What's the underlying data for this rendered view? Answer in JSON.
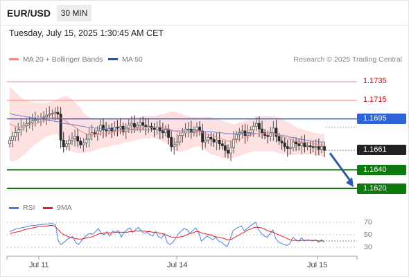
{
  "header": {
    "pair": "EUR/USD",
    "timeframe": "30 MIN",
    "timestamp": "Tuesday, July 15, 2025 1:30:45 AM CET"
  },
  "legend": {
    "ma20_label": "MA 20 + Bollinger Bands",
    "ma50_label": "MA 50",
    "credit": "Research © 2025 Trading Central"
  },
  "colors": {
    "ma20": "#f08a84",
    "bollinger_fill": "#fde0e0",
    "ma50": "#6a7fcf",
    "resistance": "#f08080",
    "pivot": "#2f63d8",
    "support": "#0d7a0d",
    "arrow": "#2a5aa8",
    "rsi": "#4a7fe0",
    "rsi_ma": "#e02020",
    "up_candle": "#555555",
    "down_candle": "#2a2a2a"
  },
  "levels": {
    "r2": "1.1735",
    "r1": "1.1715",
    "pivot": "1.1695",
    "last": "1.1661",
    "s1": "1.1640",
    "s2": "1.1620"
  },
  "rsi_panel": {
    "rsi_label": "RSI",
    "ma_label": "9MA",
    "ticks": [
      "70",
      "50",
      "30"
    ]
  },
  "x_axis": {
    "dates": [
      "Jul 11",
      "Jul 14",
      "Jul 15"
    ]
  },
  "chart_data": {
    "type": "candlestick",
    "symbol": "EUR/USD",
    "interval": "30 MIN",
    "y_unit": "price",
    "ylim": [
      1.1605,
      1.1745
    ],
    "levels": [
      1.1735,
      1.1715,
      1.1695,
      1.1661,
      1.164,
      1.162
    ],
    "closes": [
      1.1672,
      1.1676,
      1.168,
      1.1683,
      1.1686,
      1.1688,
      1.169,
      1.1691,
      1.1693,
      1.1694,
      1.1695,
      1.1696,
      1.1697,
      1.1699,
      1.17,
      1.1701,
      1.1702,
      1.17,
      1.1672,
      1.1665,
      1.1668,
      1.1672,
      1.1674,
      1.1676,
      1.1671,
      1.1667,
      1.1669,
      1.1673,
      1.1678,
      1.168,
      1.1679,
      1.1682,
      1.1688,
      1.1683,
      1.1682,
      1.1685,
      1.1682,
      1.1686,
      1.1685,
      1.1687,
      1.1681,
      1.1685,
      1.1688,
      1.169,
      1.1686,
      1.1688,
      1.1691,
      1.1688,
      1.1686,
      1.1687,
      1.1685,
      1.1683,
      1.1686,
      1.1682,
      1.168,
      1.1684,
      1.1675,
      1.1665,
      1.1667,
      1.167,
      1.1677,
      1.168,
      1.1684,
      1.1684,
      1.168,
      1.1683,
      1.1686,
      1.1682,
      1.167,
      1.1672,
      1.1675,
      1.1673,
      1.167,
      1.1672,
      1.1668,
      1.1666,
      1.1661,
      1.1658,
      1.1664,
      1.1673,
      1.1678,
      1.168,
      1.1682,
      1.1677,
      1.168,
      1.1683,
      1.1687,
      1.169,
      1.1684,
      1.168,
      1.1677,
      1.1676,
      1.168,
      1.1685,
      1.1676,
      1.1671,
      1.1669,
      1.1665,
      1.1663,
      1.1664,
      1.167,
      1.1668,
      1.1666,
      1.1669,
      1.1665,
      1.1666,
      1.1665,
      1.1664,
      1.1665,
      1.1662,
      1.1665,
      1.1661
    ],
    "ma20": [
      1.169,
      1.1688,
      1.1687,
      1.1686,
      1.1686,
      1.1686,
      1.1687,
      1.1688,
      1.1689,
      1.169,
      1.1691,
      1.1692,
      1.1693,
      1.1694,
      1.1695,
      1.1696,
      1.1697,
      1.1697,
      1.1696,
      1.1694,
      1.1692,
      1.169,
      1.1688,
      1.1686,
      1.1684,
      1.1682,
      1.168,
      1.1679,
      1.1678,
      1.1678,
      1.1678,
      1.1678,
      1.1679,
      1.1679,
      1.1679,
      1.168,
      1.168,
      1.1681,
      1.1681,
      1.1682,
      1.1682,
      1.1683,
      1.1683,
      1.1684,
      1.1684,
      1.1685,
      1.1685,
      1.1686,
      1.1686,
      1.1686,
      1.1686,
      1.1686,
      1.1686,
      1.1686,
      1.1685,
      1.1685,
      1.1684,
      1.1683,
      1.1682,
      1.1681,
      1.168,
      1.168,
      1.168,
      1.168,
      1.168,
      1.1681,
      1.1681,
      1.1681,
      1.168,
      1.1679,
      1.1678,
      1.1677,
      1.1676,
      1.1675,
      1.1674,
      1.1673,
      1.1672,
      1.1671,
      1.1671,
      1.1671,
      1.1672,
      1.1673,
      1.1674,
      1.1675,
      1.1676,
      1.1677,
      1.1678,
      1.1679,
      1.1679,
      1.1679,
      1.1679,
      1.1679,
      1.1679,
      1.1679,
      1.1678,
      1.1677,
      1.1676,
      1.1675,
      1.1674,
      1.1673,
      1.1672,
      1.1671,
      1.1671,
      1.167,
      1.167,
      1.1669,
      1.1669,
      1.1668,
      1.1668,
      1.1667,
      1.1667,
      1.1666
    ],
    "ma50": [
      1.1701,
      1.17,
      1.1699,
      1.1699,
      1.1698,
      1.1698,
      1.1697,
      1.1697,
      1.1696,
      1.1696,
      1.1695,
      1.1695,
      1.1694,
      1.1694,
      1.1693,
      1.1693,
      1.1692,
      1.1692,
      1.1691,
      1.169,
      1.169,
      1.1689,
      1.1689,
      1.1688,
      1.1688,
      1.1687,
      1.1687,
      1.1686,
      1.1686,
      1.1686,
      1.1685,
      1.1685,
      1.1685,
      1.1684,
      1.1684,
      1.1684,
      1.1684,
      1.1683,
      1.1683,
      1.1683,
      1.1683,
      1.1683,
      1.1683,
      1.1683,
      1.1683,
      1.1683,
      1.1683,
      1.1683,
      1.1683,
      1.1683,
      1.1683,
      1.1683,
      1.1683,
      1.1683,
      1.1683,
      1.1683,
      1.1683,
      1.1682,
      1.1682,
      1.1682,
      1.1682,
      1.1682,
      1.1682,
      1.1682,
      1.1682,
      1.1682,
      1.1682,
      1.1682,
      1.1682,
      1.1681,
      1.1681,
      1.1681,
      1.1681,
      1.168,
      1.168,
      1.168,
      1.1679,
      1.1679,
      1.1679,
      1.1679,
      1.1679,
      1.1679,
      1.1679,
      1.1679,
      1.1679,
      1.1679,
      1.1679,
      1.1679,
      1.1679,
      1.1679,
      1.1679,
      1.1679,
      1.1679,
      1.1679,
      1.1679,
      1.1678,
      1.1677,
      1.1677,
      1.1676,
      1.1675,
      1.1675,
      1.1674,
      1.1673,
      1.1673,
      1.1672,
      1.1672,
      1.1671,
      1.1671,
      1.1671,
      1.167,
      1.167,
      1.167
    ],
    "band_width": [
      0.004,
      0.0039,
      0.0037,
      0.0035,
      0.0032,
      0.003,
      0.0028,
      0.0026,
      0.0024,
      0.0022,
      0.0021,
      0.002,
      0.0019,
      0.0018,
      0.0018,
      0.0018,
      0.0018,
      0.0019,
      0.0022,
      0.0025,
      0.0027,
      0.0028,
      0.0028,
      0.0027,
      0.0026,
      0.0024,
      0.0022,
      0.002,
      0.0019,
      0.0018,
      0.0017,
      0.0016,
      0.0016,
      0.0015,
      0.0015,
      0.0015,
      0.0014,
      0.0014,
      0.0014,
      0.0014,
      0.0013,
      0.0013,
      0.0013,
      0.0013,
      0.0013,
      0.0012,
      0.0012,
      0.0012,
      0.0012,
      0.0012,
      0.0012,
      0.0012,
      0.0013,
      0.0014,
      0.0015,
      0.0016,
      0.0018,
      0.002,
      0.0021,
      0.0021,
      0.0021,
      0.002,
      0.0019,
      0.0018,
      0.0017,
      0.0016,
      0.0016,
      0.0016,
      0.0017,
      0.0018,
      0.0019,
      0.002,
      0.002,
      0.002,
      0.002,
      0.002,
      0.002,
      0.002,
      0.0019,
      0.0018,
      0.0018,
      0.0018,
      0.0018,
      0.0018,
      0.0018,
      0.0018,
      0.0018,
      0.0019,
      0.0019,
      0.0019,
      0.0019,
      0.0019,
      0.0019,
      0.0019,
      0.0019,
      0.0019,
      0.0019,
      0.0018,
      0.0018,
      0.0017,
      0.0016,
      0.0015,
      0.0014,
      0.0014,
      0.0013,
      0.0013,
      0.0012,
      0.0012,
      0.0012,
      0.0012,
      0.0012,
      0.0012
    ],
    "rsi": [
      55,
      57,
      59,
      60,
      61,
      62,
      63,
      64,
      65,
      65,
      66,
      66,
      67,
      67,
      68,
      68,
      66,
      40,
      34,
      38,
      42,
      45,
      47,
      38,
      34,
      40,
      45,
      50,
      52,
      51,
      55,
      60,
      52,
      50,
      55,
      48,
      56,
      54,
      57,
      46,
      54,
      58,
      61,
      54,
      58,
      62,
      56,
      52,
      54,
      50,
      48,
      55,
      47,
      44,
      52,
      38,
      34,
      38,
      44,
      52,
      56,
      60,
      58,
      52,
      57,
      61,
      54,
      40,
      44,
      48,
      45,
      42,
      46,
      40,
      38,
      34,
      31,
      42,
      56,
      60,
      62,
      64,
      56,
      60,
      64,
      67,
      70,
      58,
      52,
      48,
      46,
      52,
      58,
      44,
      38,
      36,
      34,
      33,
      36,
      46,
      42,
      40,
      45,
      40,
      42,
      41,
      40,
      42,
      38,
      42,
      38
    ],
    "rsi_ma": [
      52,
      53,
      54,
      55,
      56,
      58,
      59,
      60,
      61,
      62,
      63,
      63,
      64,
      64,
      65,
      65,
      63,
      58,
      53,
      50,
      48,
      46,
      45,
      44,
      43,
      43,
      44,
      45,
      46,
      47,
      49,
      51,
      52,
      53,
      53,
      53,
      53,
      54,
      54,
      54,
      54,
      54,
      55,
      55,
      56,
      56,
      56,
      56,
      55,
      55,
      54,
      54,
      53,
      52,
      51,
      49,
      47,
      46,
      46,
      46,
      47,
      48,
      50,
      52,
      53,
      55,
      55,
      53,
      52,
      51,
      50,
      48,
      47,
      46,
      45,
      44,
      42,
      42,
      44,
      47,
      49,
      52,
      54,
      57,
      59,
      61,
      62,
      62,
      61,
      59,
      57,
      55,
      54,
      52,
      50,
      48,
      46,
      44,
      42,
      41,
      41,
      40,
      41,
      41,
      41,
      41,
      41,
      41,
      40,
      40,
      40
    ],
    "rsi_ylim": [
      20,
      80
    ],
    "rsi_ticks": [
      70,
      50,
      30
    ],
    "x_ticks": [
      "Jul 11",
      "Jul 14",
      "Jul 15"
    ],
    "projection": {
      "from": 1.1661,
      "to": 1.162
    }
  }
}
